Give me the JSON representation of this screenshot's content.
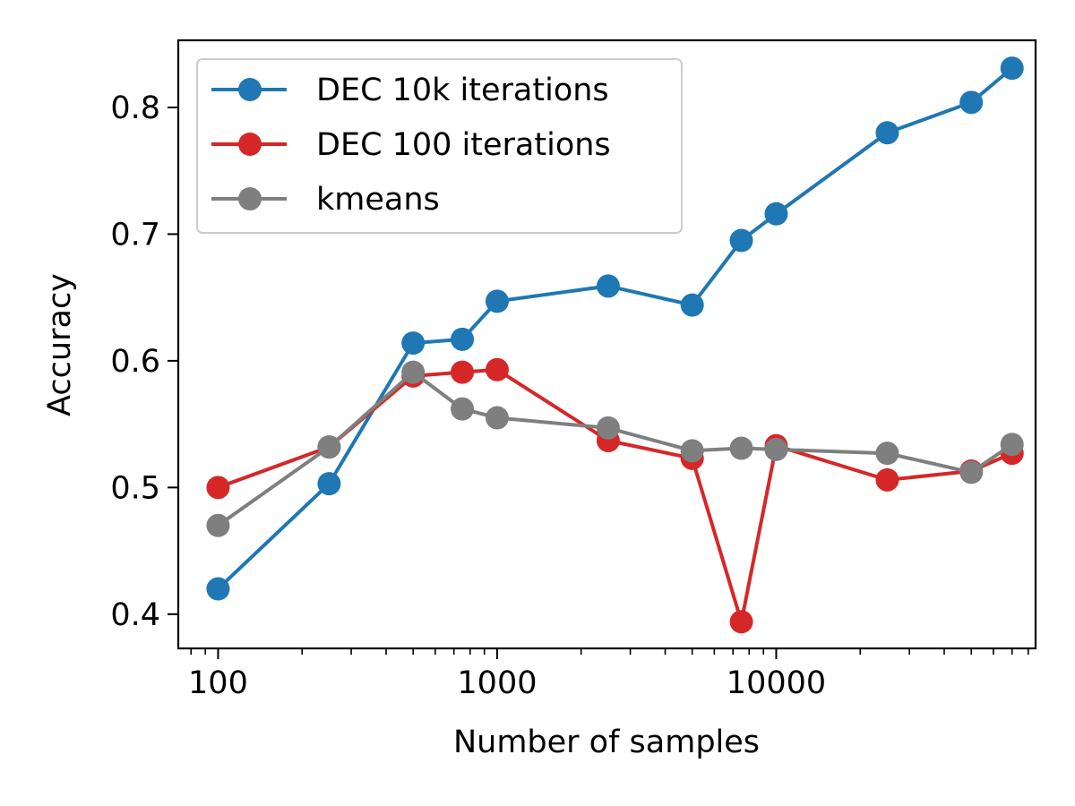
{
  "chart_data": {
    "type": "line",
    "title": "",
    "xlabel": "Number of samples",
    "ylabel": "Accuracy",
    "xscale": "log",
    "xlim": [
      72,
      85000
    ],
    "ylim": [
      0.373,
      0.853
    ],
    "x_ticks": [
      {
        "value": 100,
        "label": "100"
      },
      {
        "value": 1000,
        "label": "1000"
      },
      {
        "value": 10000,
        "label": "10000"
      }
    ],
    "y_ticks": [
      {
        "value": 0.4,
        "label": "0.4"
      },
      {
        "value": 0.5,
        "label": "0.5"
      },
      {
        "value": 0.6,
        "label": "0.6"
      },
      {
        "value": 0.7,
        "label": "0.7"
      },
      {
        "value": 0.8,
        "label": "0.8"
      }
    ],
    "grid": false,
    "legend_position": "top-left",
    "x": [
      100,
      250,
      500,
      750,
      1000,
      2500,
      5000,
      7500,
      10000,
      25000,
      50000,
      70000
    ],
    "series": [
      {
        "name": "DEC 10k iterations",
        "color": "#1f77b4",
        "values": [
          0.42,
          0.503,
          0.614,
          0.617,
          0.647,
          0.659,
          0.644,
          0.695,
          0.716,
          0.78,
          0.804,
          0.831
        ]
      },
      {
        "name": "DEC 100 iterations",
        "color": "#d62728",
        "values": [
          0.5,
          0.532,
          0.588,
          0.591,
          0.593,
          0.537,
          0.523,
          0.394,
          0.533,
          0.506,
          0.513,
          0.527
        ]
      },
      {
        "name": "kmeans",
        "color": "#7f7f7f",
        "values": [
          0.47,
          0.532,
          0.591,
          0.562,
          0.555,
          0.547,
          0.529,
          0.531,
          0.53,
          0.527,
          0.512,
          0.534
        ]
      }
    ]
  }
}
